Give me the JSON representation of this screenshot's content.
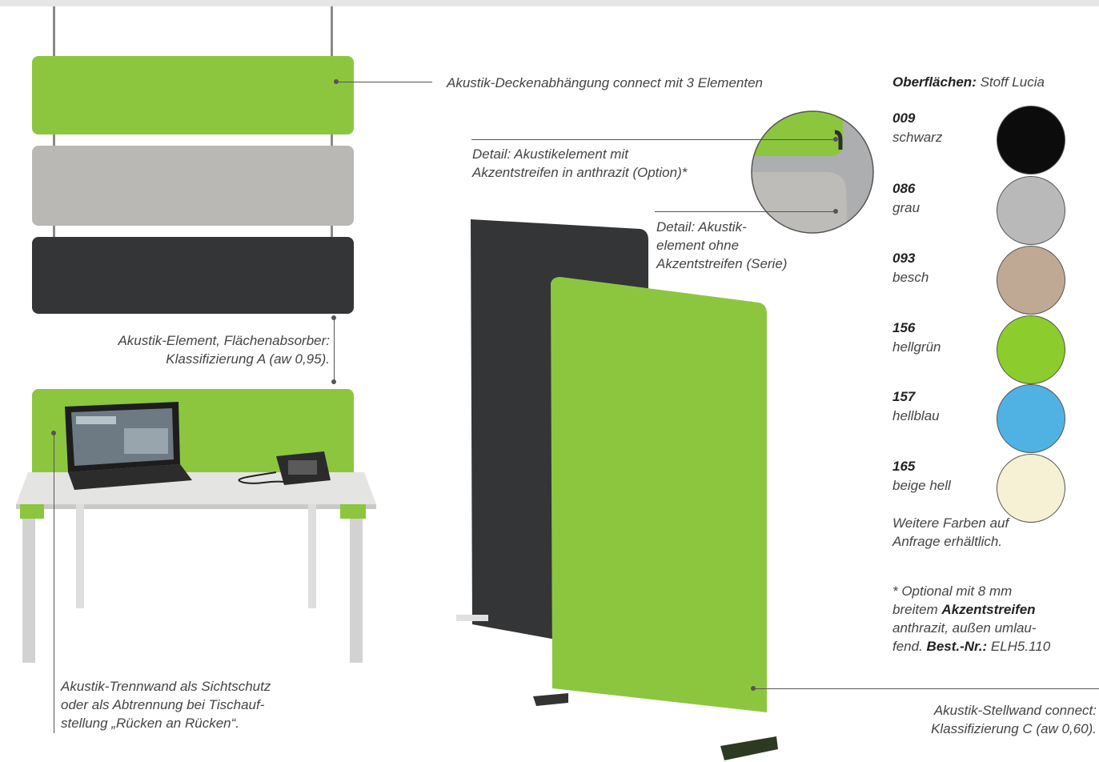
{
  "callouts": {
    "ceiling": "Akustik-Deckenabhängung connect mit 3 Elementen",
    "detail_option_1": "Detail: Akustikelement mit",
    "detail_option_2": "Akzentstreifen in anthrazit (Option)*",
    "detail_series_1": "Detail: Akustik-",
    "detail_series_2": "element ohne",
    "detail_series_3": "Akzentstreifen (Serie)",
    "element_1": "Akustik-Element, Flächenabsorber:",
    "element_2": "Klassifizierung A (aw 0,95).",
    "divider_1": "Akustik-Trennwand als Sichtschutz",
    "divider_2": "oder als Abtrennung bei Tischauf-",
    "divider_3": "stellung „Rücken an Rücken“.",
    "stand_1": "Akustik-Stellwand connect:",
    "stand_2": "Klassifizierung C (aw 0,60)."
  },
  "surfaces": {
    "label": "Oberflächen:",
    "fabric": "Stoff Lucia",
    "swatches": [
      {
        "code": "009",
        "name": "schwarz",
        "color": "#0c0c0c"
      },
      {
        "code": "086",
        "name": "grau",
        "color": "#b9b9b9"
      },
      {
        "code": "093",
        "name": "besch",
        "color": "#bfa995"
      },
      {
        "code": "156",
        "name": "hellgrün",
        "color": "#8ccc2c"
      },
      {
        "code": "157",
        "name": "hellblau",
        "color": "#4fb2e3"
      },
      {
        "code": "165",
        "name": "beige hell",
        "color": "#f6f0d5"
      }
    ],
    "more_1": "Weitere Farben auf",
    "more_2": "Anfrage erhältlich."
  },
  "footnote": {
    "line1": "* Optional mit 8 mm",
    "line2_prefix": "breitem",
    "line2_bold": "Akzentstreifen",
    "line3": "anthrazit, außen umlau-",
    "line4_prefix": "fend.",
    "line4_bold": "Best.-Nr.:",
    "line4_value": "ELH5.110"
  },
  "colors": {
    "green": "#8cc63f",
    "grey_panel": "#b8b7b3",
    "dark_panel": "#333536"
  }
}
